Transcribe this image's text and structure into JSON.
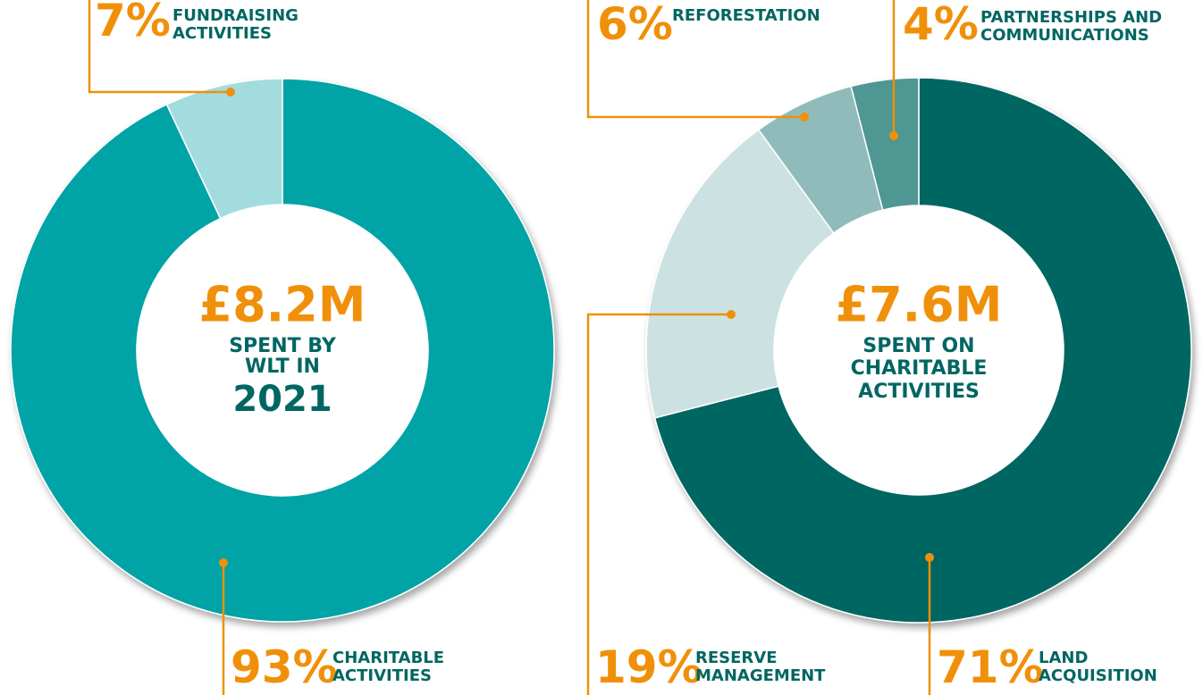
{
  "chart_data": [
    {
      "type": "pie",
      "donut": true,
      "categories": [
        "CHARITABLE ACTIVITIES",
        "FUNDRAISING ACTIVITIES"
      ],
      "values": [
        93,
        7
      ],
      "value_labels": [
        "93%",
        "7%"
      ],
      "colors": [
        "#00a3a6",
        "#a3dcdf"
      ],
      "center_text": [
        "£8.2M",
        "SPENT BY",
        "WLT IN",
        "2021"
      ]
    },
    {
      "type": "pie",
      "donut": true,
      "categories": [
        "LAND ACQUISITION",
        "RESERVE MANAGEMENT",
        "REFORESTATION",
        "PARTNERSHIPS AND COMMUNICATIONS"
      ],
      "values": [
        71,
        19,
        6,
        4
      ],
      "value_labels": [
        "71%",
        "19%",
        "6%",
        "4%"
      ],
      "colors": [
        "#006662",
        "#cce2e2",
        "#8fbcbb",
        "#4f9793"
      ],
      "center_text": [
        "£7.6M",
        "SPENT ON",
        "CHARITABLE",
        "ACTIVITIES"
      ]
    }
  ]
}
